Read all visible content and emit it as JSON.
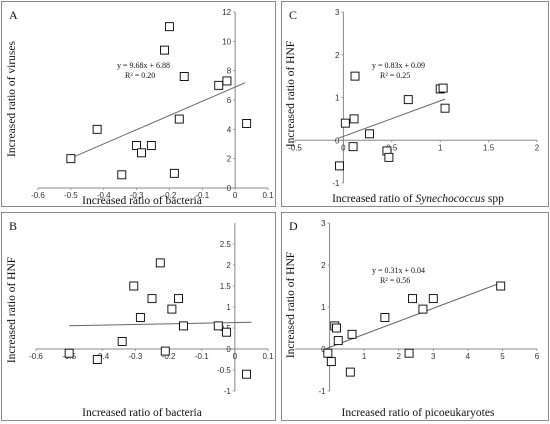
{
  "chart_data": [
    {
      "id": "A",
      "type": "scatter",
      "panel_label": "A",
      "xlabel": "Increased ratio of bacteria",
      "xlabel_italic": "",
      "ylabel": "Increased ratio of viruses",
      "xlim": [
        -0.6,
        0.1
      ],
      "ylim": [
        0,
        12
      ],
      "xticks": [
        -0.6,
        -0.5,
        -0.4,
        -0.3,
        -0.2,
        -0.1,
        0,
        0.1
      ],
      "xtick_labels": [
        "-0.6",
        "-0.5",
        "-0.4",
        "-0.3",
        "-0.2",
        "-0.1",
        "0",
        "0.1"
      ],
      "yticks": [
        0,
        2,
        4,
        6,
        8,
        10,
        12
      ],
      "ytick_labels": [
        "0",
        "2",
        "4",
        "6",
        "8",
        "10",
        "12"
      ],
      "equation": "y = 9.68x + 6.88",
      "r2": "R² = 0.20",
      "trendline": {
        "slope": 9.68,
        "intercept": 6.88,
        "x_range": [
          -0.5,
          0.03
        ]
      },
      "marker_color": "#000000",
      "trend_color": "#666666",
      "points": [
        {
          "x": -0.5,
          "y": 2.0
        },
        {
          "x": -0.42,
          "y": 4.0
        },
        {
          "x": -0.345,
          "y": 0.9
        },
        {
          "x": -0.3,
          "y": 2.9
        },
        {
          "x": -0.285,
          "y": 2.4
        },
        {
          "x": -0.255,
          "y": 2.9
        },
        {
          "x": -0.215,
          "y": 9.4
        },
        {
          "x": -0.2,
          "y": 11.0
        },
        {
          "x": -0.185,
          "y": 1.0
        },
        {
          "x": -0.17,
          "y": 4.7
        },
        {
          "x": -0.155,
          "y": 7.6
        },
        {
          "x": -0.05,
          "y": 7.0
        },
        {
          "x": -0.025,
          "y": 7.3
        },
        {
          "x": 0.035,
          "y": 4.4
        }
      ]
    },
    {
      "id": "C",
      "type": "scatter",
      "panel_label": "C",
      "xlabel": "Increased ratio of ",
      "xlabel_italic": "Synechococcus",
      "xlabel_suffix": " spp",
      "ylabel": "Increased ratio of HNF",
      "xlim": [
        -0.5,
        2
      ],
      "ylim": [
        -1,
        3
      ],
      "xticks": [
        -0.5,
        0,
        0.5,
        1,
        1.5,
        2
      ],
      "xtick_labels": [
        "-0.5",
        "0",
        "0.5",
        "1",
        "1.5",
        "2"
      ],
      "yticks": [
        -1,
        0,
        1,
        2,
        3
      ],
      "ytick_labels": [
        "-1",
        "0",
        "1",
        "2",
        "3"
      ],
      "equation": "y = 0.83x + 0.09",
      "r2": "R² = 0.25",
      "trendline": {
        "slope": 0.83,
        "intercept": 0.09,
        "x_range": [
          -0.05,
          1.05
        ]
      },
      "marker_color": "#000000",
      "trend_color": "#666666",
      "points": [
        {
          "x": -0.04,
          "y": -0.6
        },
        {
          "x": 0.02,
          "y": 0.4
        },
        {
          "x": 0.1,
          "y": -0.15
        },
        {
          "x": 0.11,
          "y": 0.5
        },
        {
          "x": 0.12,
          "y": 1.5
        },
        {
          "x": 0.27,
          "y": 0.15
        },
        {
          "x": 0.45,
          "y": -0.25
        },
        {
          "x": 0.47,
          "y": -0.4
        },
        {
          "x": 0.67,
          "y": 0.95
        },
        {
          "x": 1.0,
          "y": 1.2
        },
        {
          "x": 1.03,
          "y": 1.22
        },
        {
          "x": 1.05,
          "y": 0.75
        }
      ]
    },
    {
      "id": "B",
      "type": "scatter",
      "panel_label": "B",
      "xlabel": "Increased ratio of bacteria",
      "xlabel_italic": "",
      "ylabel": "Increased ratio of HNF",
      "xlim": [
        -0.6,
        0.1
      ],
      "ylim": [
        -1,
        3
      ],
      "xticks": [
        -0.6,
        -0.5,
        -0.4,
        -0.3,
        -0.2,
        -0.1,
        0,
        0.1
      ],
      "xtick_labels": [
        "-0.6",
        "-0.5",
        "-0.4",
        "-0.3",
        "-0.2",
        "-0.1",
        "0",
        "0.1"
      ],
      "yticks": [
        -1,
        -0.5,
        0,
        0.5,
        1,
        1.5,
        2,
        2.5
      ],
      "ytick_labels": [
        "-1",
        "-0.5",
        "0",
        "0.5",
        "1",
        "1.5",
        "2",
        "2.5"
      ],
      "equation": "",
      "r2": "",
      "trendline": {
        "slope": 0.15,
        "intercept": 0.63,
        "x_range": [
          -0.5,
          0.05
        ]
      },
      "marker_color": "#000000",
      "trend_color": "#666666",
      "points": [
        {
          "x": -0.5,
          "y": -0.1
        },
        {
          "x": -0.415,
          "y": -0.25
        },
        {
          "x": -0.34,
          "y": 0.18
        },
        {
          "x": -0.305,
          "y": 1.5
        },
        {
          "x": -0.285,
          "y": 0.75
        },
        {
          "x": -0.25,
          "y": 1.2
        },
        {
          "x": -0.225,
          "y": 2.05
        },
        {
          "x": -0.21,
          "y": -0.05
        },
        {
          "x": -0.19,
          "y": 0.95
        },
        {
          "x": -0.17,
          "y": 1.2
        },
        {
          "x": -0.155,
          "y": 0.55
        },
        {
          "x": -0.05,
          "y": 0.55
        },
        {
          "x": -0.025,
          "y": 0.4
        },
        {
          "x": 0.035,
          "y": -0.6
        }
      ]
    },
    {
      "id": "D",
      "type": "scatter",
      "panel_label": "D",
      "xlabel": "Increased ratio of picoeukaryotes",
      "xlabel_italic": "",
      "ylabel": "Increased ratio of HNF",
      "xlim": [
        -1,
        6
      ],
      "ylim": [
        -1,
        3
      ],
      "xticks": [
        0,
        1,
        2,
        3,
        4,
        5,
        6
      ],
      "xtick_labels": [
        "0",
        "1",
        "2",
        "3",
        "4",
        "5",
        "6"
      ],
      "yticks": [
        -1,
        0,
        1,
        2,
        3
      ],
      "ytick_labels": [
        "-1",
        "0",
        "1",
        "2",
        "3"
      ],
      "equation": "y = 0.31x + 0.04",
      "r2": "R² = 0.56",
      "trendline": {
        "slope": 0.31,
        "intercept": 0.04,
        "x_range": [
          -0.1,
          5.0
        ]
      },
      "marker_color": "#000000",
      "trend_color": "#666666",
      "points": [
        {
          "x": -0.05,
          "y": -0.1
        },
        {
          "x": 0.05,
          "y": -0.3
        },
        {
          "x": 0.15,
          "y": 0.55
        },
        {
          "x": 0.2,
          "y": 0.5
        },
        {
          "x": 0.25,
          "y": 0.2
        },
        {
          "x": 0.6,
          "y": -0.55
        },
        {
          "x": 0.65,
          "y": 0.35
        },
        {
          "x": 1.6,
          "y": 0.75
        },
        {
          "x": 2.3,
          "y": -0.1
        },
        {
          "x": 2.4,
          "y": 1.2
        },
        {
          "x": 2.7,
          "y": 0.95
        },
        {
          "x": 3.0,
          "y": 1.2
        },
        {
          "x": 4.95,
          "y": 1.5
        }
      ]
    }
  ]
}
